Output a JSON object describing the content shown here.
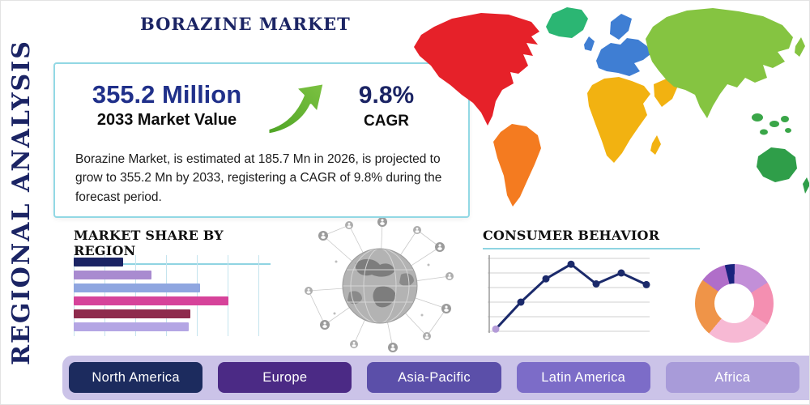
{
  "page": {
    "title": "BORAZINE MARKET",
    "side_label": "REGIONAL ANALYSIS"
  },
  "stats": {
    "market_value": "355.2 Million",
    "market_value_label": "2033 Market Value",
    "cagr_value": "9.8%",
    "cagr_label": "CAGR",
    "description": "Borazine Market, is estimated at 185.7 Mn in 2026, is projected to grow to 355.2 Mn by 2033, registering a CAGR of 9.8% during the forecast period."
  },
  "sections": {
    "market_share_title": "MARKET SHARE BY REGION",
    "consumer_behavior_title": "CONSUMER BEHAVIOR"
  },
  "footer": {
    "regions": [
      {
        "label": "North America",
        "color": "#1c2b5e"
      },
      {
        "label": "Europe",
        "color": "#4b2a85"
      },
      {
        "label": "Asia-Pacific",
        "color": "#5b4fa9"
      },
      {
        "label": "Latin America",
        "color": "#7c6cc8"
      },
      {
        "label": "Africa",
        "color": "#a89bd9"
      }
    ]
  },
  "colors": {
    "accent_navy": "#1b2464",
    "box_border": "#92d8e4",
    "heading_underline": "#8fd4e2",
    "strip": "#cbc3e8",
    "arrow_green_light": "#7dc242",
    "arrow_green_dark": "#4ea425"
  },
  "map_regions": [
    {
      "name": "North America",
      "color": "#e62129"
    },
    {
      "name": "Greenland",
      "color": "#2bb673"
    },
    {
      "name": "South America",
      "color": "#f47b20"
    },
    {
      "name": "Europe",
      "color": "#3f7ed3"
    },
    {
      "name": "Africa",
      "color": "#f2b211"
    },
    {
      "name": "Asia",
      "color": "#85c441"
    },
    {
      "name": "Southeast Asia",
      "color": "#3aa648"
    },
    {
      "name": "Australia",
      "color": "#2f9e49"
    }
  ],
  "chart_data": [
    {
      "type": "bar",
      "orientation": "horizontal",
      "title": "MARKET SHARE BY REGION",
      "categories": [
        "",
        "",
        "",
        "",
        "",
        ""
      ],
      "values": [
        26,
        41,
        67,
        82,
        62,
        61
      ],
      "colors": [
        "#1b2464",
        "#a98bd0",
        "#8fa6e0",
        "#d6439a",
        "#8e2b4d",
        "#b4a6e4"
      ],
      "xlim": [
        0,
        100
      ],
      "grid": true,
      "legend": "none"
    },
    {
      "type": "line",
      "title": "CONSUMER BEHAVIOR",
      "x": [
        1,
        2,
        3,
        4,
        5,
        6,
        7
      ],
      "values": [
        3,
        40,
        72,
        92,
        65,
        80,
        64
      ],
      "ylim": [
        0,
        100
      ],
      "line_color": "#1b2a6b",
      "marker_color": "#1b2a6b",
      "first_marker_color": "#b49bd8",
      "grid": true,
      "legend": "none"
    },
    {
      "type": "pie",
      "donut": true,
      "title": "Regional share donut",
      "slices": [
        {
          "label": "navy",
          "value": 4,
          "color": "#1a237e"
        },
        {
          "label": "lilac",
          "value": 16,
          "color": "#c28fd8"
        },
        {
          "label": "pink",
          "value": 18,
          "color": "#f48fb1"
        },
        {
          "label": "light-pink",
          "value": 27,
          "color": "#f7b9d4"
        },
        {
          "label": "orange",
          "value": 24,
          "color": "#ef9448"
        },
        {
          "label": "violet",
          "value": 11,
          "color": "#b06ec9"
        }
      ]
    }
  ]
}
